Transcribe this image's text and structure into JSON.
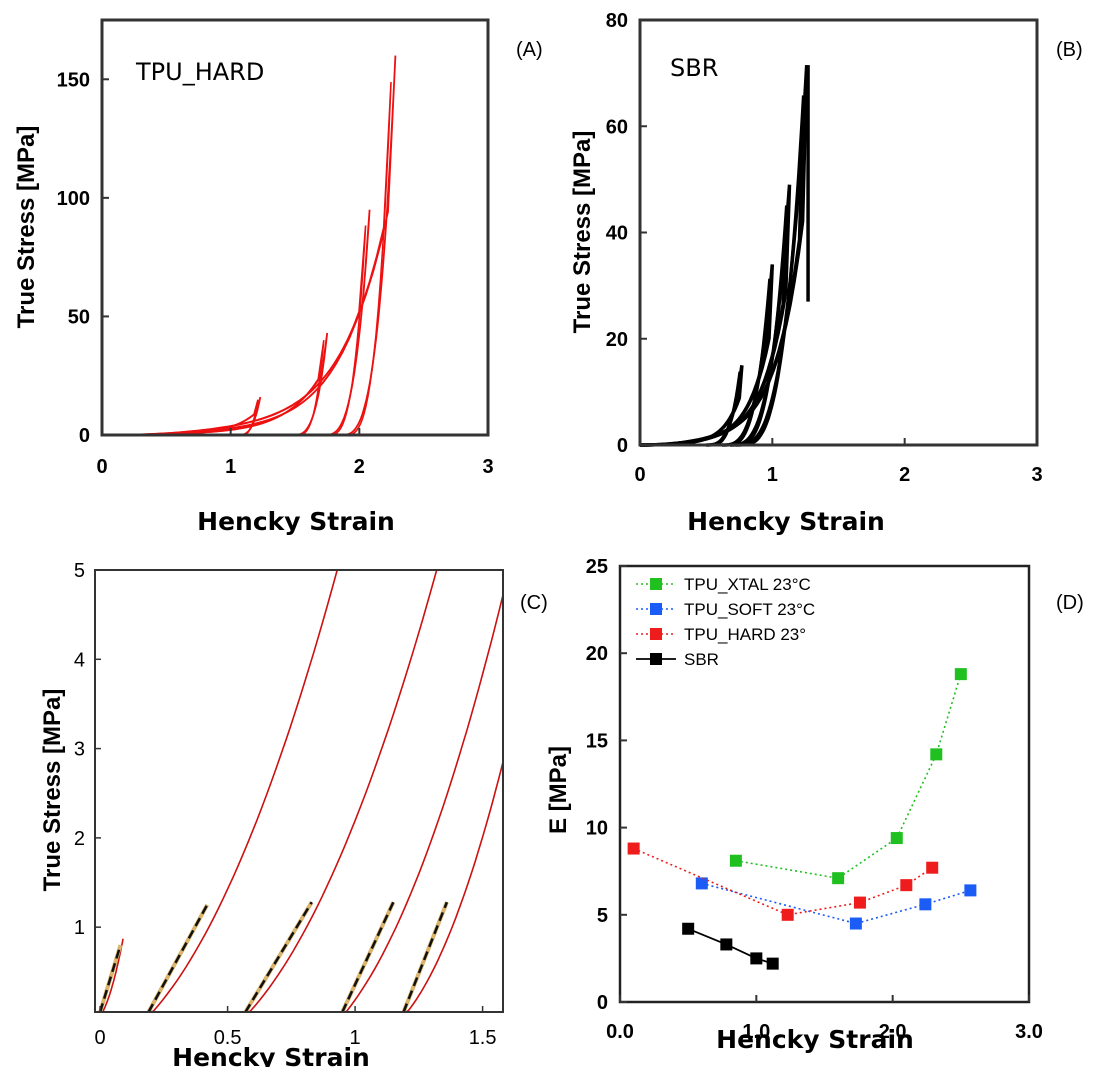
{
  "chart_data": [
    {
      "panel": "(A)",
      "type": "line",
      "annotation": "TPU_HARD",
      "xlabel": "Hencky Strain",
      "ylabel": "True Stress [MPa]",
      "xlim": [
        0,
        3
      ],
      "ylim": [
        0,
        175
      ],
      "xticks": [
        "0",
        "1",
        "2",
        "3"
      ],
      "yticks": [
        "0",
        "50",
        "100",
        "150"
      ],
      "color": "#ee1111",
      "cycles": [
        {
          "max_strain": 1.23,
          "max_stress": 16,
          "end_strain": 1.05
        },
        {
          "max_strain": 1.75,
          "max_stress": 43,
          "end_strain": 1.48
        },
        {
          "max_strain": 2.08,
          "max_stress": 95,
          "end_strain": 1.72
        },
        {
          "max_strain": 2.28,
          "max_stress": 160,
          "end_strain": 1.85
        }
      ]
    },
    {
      "panel": "(B)",
      "type": "line",
      "annotation": "SBR",
      "xlabel": "Hencky Strain",
      "ylabel": "True Stress [MPa]",
      "xlim": [
        0,
        3
      ],
      "ylim": [
        0,
        80
      ],
      "xticks": [
        "0",
        "1",
        "2",
        "3"
      ],
      "yticks": [
        "0",
        "20",
        "40",
        "60",
        "80"
      ],
      "color": "#000000",
      "cycles": [
        {
          "max_strain": 0.77,
          "max_stress": 15,
          "end_strain": 0.5
        },
        {
          "max_strain": 1.0,
          "max_stress": 34,
          "end_strain": 0.62
        },
        {
          "max_strain": 1.13,
          "max_stress": 49,
          "end_strain": 0.68
        },
        {
          "max_strain": 1.26,
          "max_stress": 71.5,
          "end_strain": 0.72
        }
      ],
      "break": {
        "strain": 1.27,
        "from_stress": 71.5,
        "to_stress": 27
      }
    },
    {
      "panel": "(C)",
      "type": "line",
      "xlabel": "Hencky Strain",
      "ylabel": "True Stress [MPa]",
      "xlim": [
        -0.02,
        1.58
      ],
      "ylim": [
        0.05,
        5
      ],
      "xticks": [
        "0",
        "0.5",
        "1",
        "1.5"
      ],
      "yticks": [
        "1",
        "2",
        "3",
        "4",
        "5"
      ],
      "color": "#cc1111",
      "curves": [
        {
          "start_strain": 0.0,
          "end_strain": 0.09,
          "end_stress": 0.87
        },
        {
          "start_strain": 0.19,
          "end_strain": 0.93,
          "end_stress": 5.0
        },
        {
          "start_strain": 0.57,
          "end_strain": 1.32,
          "end_stress": 5.0
        },
        {
          "start_strain": 0.95,
          "end_strain": 1.58,
          "end_stress": 4.72
        },
        {
          "start_strain": 1.19,
          "end_strain": 1.58,
          "end_stress": 2.85
        }
      ],
      "fits": [
        {
          "x": [
            0.0,
            0.08
          ],
          "y": [
            0.0,
            0.8
          ]
        },
        {
          "x": [
            0.19,
            0.42
          ],
          "y": [
            0.0,
            1.25
          ]
        },
        {
          "x": [
            0.57,
            0.83
          ],
          "y": [
            0.0,
            1.28
          ]
        },
        {
          "x": [
            0.95,
            1.15
          ],
          "y": [
            0.0,
            1.28
          ]
        },
        {
          "x": [
            1.19,
            1.36
          ],
          "y": [
            0.0,
            1.28
          ]
        }
      ]
    },
    {
      "panel": "(D)",
      "type": "line",
      "xlabel": "Hencky Strain",
      "ylabel": "E [MPa]",
      "xlim": [
        0,
        3.0
      ],
      "ylim": [
        0,
        25
      ],
      "xticks": [
        "0.0",
        "1.0",
        "2.0",
        "3.0"
      ],
      "yticks": [
        "0",
        "5",
        "10",
        "15",
        "20",
        "25"
      ],
      "legend": "top-left",
      "series": [
        {
          "name": "TPU_XTAL 23°C",
          "color": "#1fc01f",
          "dotted": true,
          "x": [
            0.85,
            1.6,
            2.03,
            2.32,
            2.5
          ],
          "y": [
            8.1,
            7.1,
            9.4,
            14.2,
            18.8
          ]
        },
        {
          "name": "TPU_SOFT 23°C",
          "color": "#1a5cf5",
          "dotted": true,
          "x": [
            0.6,
            1.73,
            2.24,
            2.57
          ],
          "y": [
            6.8,
            4.5,
            5.6,
            6.4
          ]
        },
        {
          "name": "TPU_HARD 23°",
          "color": "#ee1c1c",
          "dotted": true,
          "x": [
            0.1,
            1.23,
            1.76,
            2.1,
            2.29
          ],
          "y": [
            8.8,
            5.0,
            5.7,
            6.7,
            7.7
          ]
        },
        {
          "name": "SBR",
          "color": "#000000",
          "dotted": false,
          "x": [
            0.5,
            0.78,
            1.0,
            1.12
          ],
          "y": [
            4.2,
            3.3,
            2.5,
            2.2
          ]
        }
      ]
    }
  ]
}
